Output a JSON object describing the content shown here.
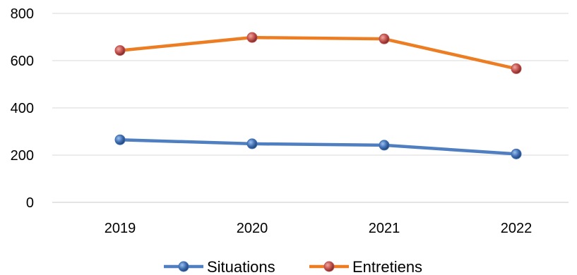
{
  "chart_data": {
    "type": "line",
    "categories": [
      "2019",
      "2020",
      "2021",
      "2022"
    ],
    "series": [
      {
        "name": "Situations",
        "values": [
          265,
          248,
          242,
          205
        ],
        "color": "#4f7fc0",
        "marker_color": "#3f6fb2"
      },
      {
        "name": "Entretiens",
        "values": [
          643,
          698,
          692,
          566
        ],
        "color": "#ec7d22",
        "marker_color": "#c0504d"
      }
    ],
    "yticks": [
      0,
      200,
      400,
      600,
      800
    ],
    "ylim": [
      0,
      800
    ],
    "grid": true,
    "legend": "bottom",
    "title": "",
    "xlabel": "",
    "ylabel": ""
  }
}
